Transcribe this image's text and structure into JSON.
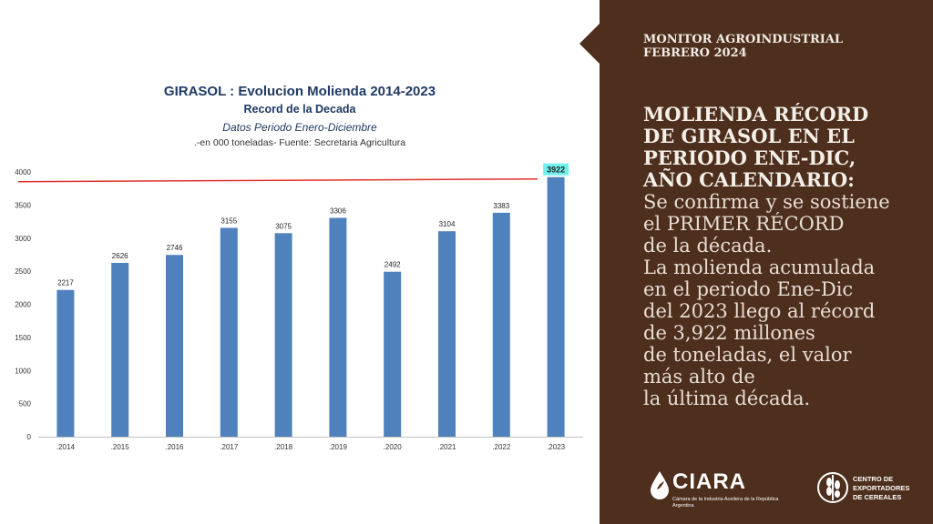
{
  "chart_data": {
    "type": "bar",
    "title": "GIRASOL : Evolucion  Molienda 2014-2023",
    "subtitle": "Record de la Decada",
    "period": "Datos Periodo  Enero-Diciembre",
    "unit_note": ".-en 000 toneladas- Fuente: Secretaria Agricultura",
    "categories": [
      ".2014",
      ".2015",
      ".2016",
      ".2017",
      ".2018",
      ".2019",
      ".2020",
      ".2021",
      ".2022",
      ".2023"
    ],
    "values": [
      2217,
      2626,
      2746,
      3155,
      3075,
      3306,
      2492,
      3104,
      3383,
      3922
    ],
    "ylim": [
      0,
      4000
    ],
    "yticks": [
      0,
      500,
      1000,
      1500,
      2000,
      2500,
      3000,
      3500,
      4000
    ],
    "reference_line": 3880,
    "highlight_category": ".2023",
    "bar_color": "#4f81bd",
    "reference_line_color": "#e03030",
    "highlight_label_color": "#6ff0ee",
    "grid": false
  },
  "side": {
    "kicker_line1": "MONITOR AGROINDUSTRIAL",
    "kicker_line2": "FEBRERO 2024",
    "headline_lines": [
      "MOLIENDA RÉCORD",
      "DE GIRASOL EN EL",
      "PERIODO ENE-DIC,",
      "AÑO CALENDARIO:"
    ],
    "body_lines": [
      "Se confirma y se sostiene",
      "el PRIMER RÉCORD",
      "de la década.",
      "La molienda acumulada",
      "en el periodo Ene-Dic",
      "del 2023 llego al récord",
      "de 3,922 millones",
      "de toneladas, el valor",
      "más alto de",
      "la última década."
    ]
  },
  "logos": {
    "ciara_name": "CIARA",
    "ciara_caption": "Cámara de la Industria Aceitera de la República Argentina",
    "cec_line1": "CENTRO DE",
    "cec_line2": "EXPORTADORES",
    "cec_line3": "DE CEREALES"
  }
}
